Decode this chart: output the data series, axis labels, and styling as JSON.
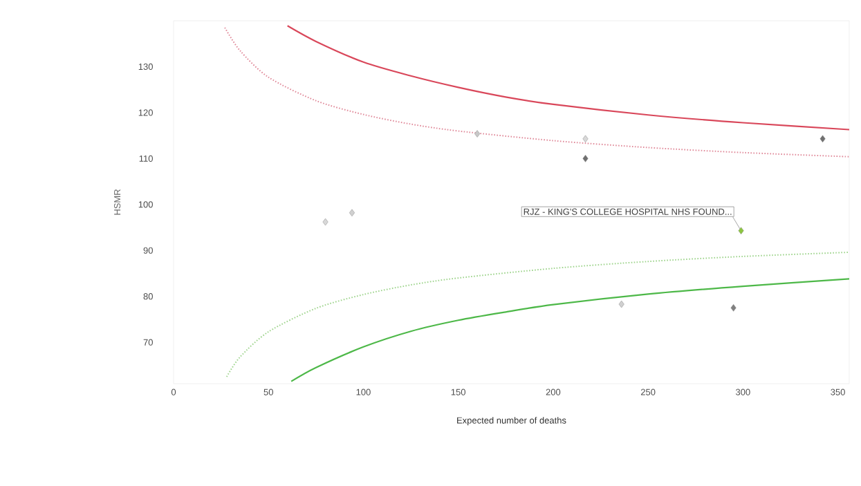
{
  "chart_data": {
    "type": "scatter",
    "xlabel": "Expected number of deaths",
    "ylabel": "HSMR",
    "xlim": [
      0,
      356
    ],
    "ylim": [
      61,
      140
    ],
    "xticks": [
      0,
      50,
      100,
      150,
      200,
      250,
      300,
      350
    ],
    "yticks": [
      70,
      80,
      90,
      100,
      110,
      120,
      130
    ],
    "marker": "diamond",
    "series": [
      {
        "type": "line",
        "color": "#d9475a",
        "line_style": "solid",
        "marker": "none",
        "x": [
          60,
          75,
          100,
          125,
          150,
          175,
          200,
          250,
          300,
          356
        ],
        "values": [
          138.9,
          135.5,
          131,
          128,
          125.5,
          123.4,
          121.8,
          119.5,
          117.8,
          116.3
        ]
      },
      {
        "type": "line",
        "color": "#e08a9a",
        "line_style": "dotted",
        "marker": "none",
        "x": [
          27,
          35,
          50,
          75,
          100,
          125,
          150,
          200,
          250,
          300,
          356
        ],
        "values": [
          138.5,
          133.5,
          127.7,
          122.6,
          119.6,
          117.5,
          116,
          113.9,
          112.4,
          111.3,
          110.4
        ]
      },
      {
        "type": "line",
        "color": "#9ed48c",
        "line_style": "dotted",
        "marker": "none",
        "x": [
          28,
          35,
          50,
          75,
          100,
          125,
          150,
          200,
          250,
          300,
          356
        ],
        "values": [
          62.5,
          66.8,
          72.3,
          77.4,
          80.4,
          82.5,
          84,
          86.1,
          87.6,
          88.7,
          89.6
        ]
      },
      {
        "type": "line",
        "color": "#4db848",
        "line_style": "solid",
        "marker": "none",
        "x": [
          62,
          75,
          100,
          125,
          150,
          175,
          200,
          250,
          300,
          356
        ],
        "values": [
          61.5,
          64.5,
          69,
          72.4,
          74.8,
          76.6,
          78.2,
          80.5,
          82.2,
          83.8
        ]
      },
      {
        "x": [
          299,
          217,
          342,
          160,
          217,
          80,
          94,
          236,
          295
        ],
        "values": [
          94.3,
          110,
          114.3,
          115.4,
          114.3,
          96.2,
          98.2,
          78.3,
          77.5
        ],
        "colors": [
          "#8cc63f",
          "#707070",
          "#707070",
          "#c8c8c8",
          "#d8d8d8",
          "#d8d8d8",
          "#d0d0d0",
          "#d0d0d0",
          "#808080"
        ]
      }
    ],
    "annotations": [
      {
        "text": "RJZ - KING'S COLLEGE HOSPITAL NHS FOUND...",
        "x": 299,
        "y": 94.3
      }
    ]
  }
}
